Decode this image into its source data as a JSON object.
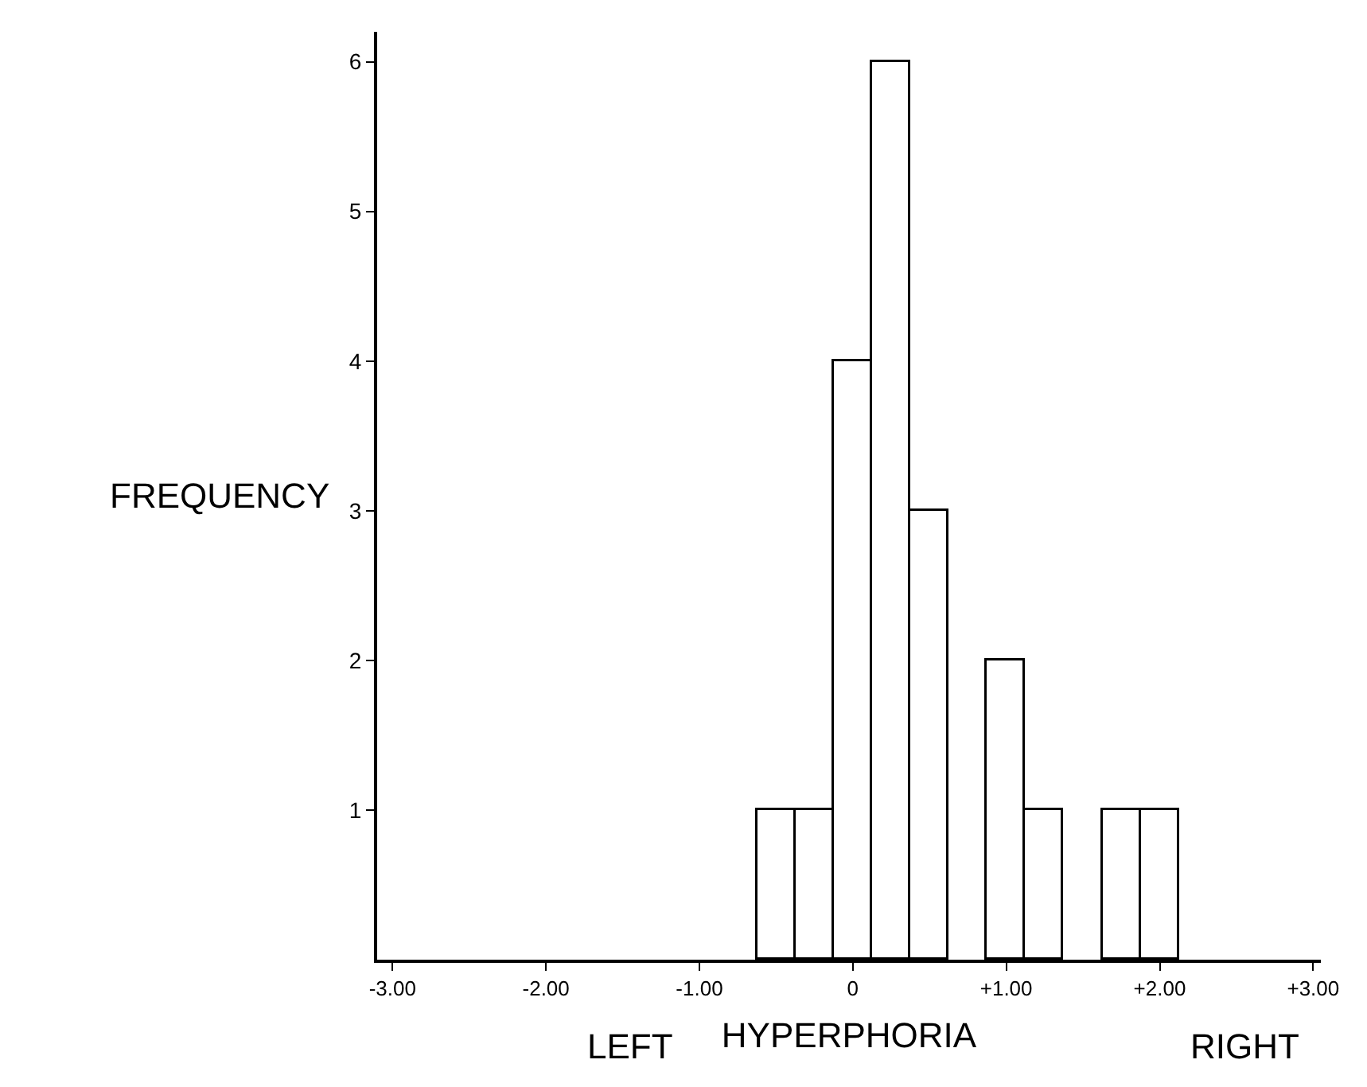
{
  "chart_data": {
    "type": "histogram",
    "xlabel": "HYPERPHORIA",
    "ylabel": "FREQUENCY",
    "annotations": [
      "LEFT",
      "RIGHT"
    ],
    "bins": [
      -0.625,
      -0.375,
      -0.125,
      0.125,
      0.375,
      0.625,
      0.875,
      1.125,
      1.375,
      1.625,
      1.875,
      2.125
    ],
    "values": [
      1,
      1,
      4,
      6,
      3,
      0,
      2,
      1,
      0,
      1,
      1
    ],
    "color": "#ffffff",
    "xlim": [
      -3.1,
      3.05
    ],
    "xticks": [
      {
        "value": -3,
        "label": "-3.00"
      },
      {
        "value": -2,
        "label": "-2.00"
      },
      {
        "value": -1,
        "label": "-1.00"
      },
      0,
      {
        "value": 1,
        "label": "+1.00"
      },
      {
        "value": 2,
        "label": "+2.00"
      },
      {
        "value": 3,
        "label": "+3.00"
      }
    ],
    "ylim": [
      0,
      6.2
    ],
    "yticks": [
      1,
      2,
      3,
      4,
      5,
      6
    ]
  }
}
